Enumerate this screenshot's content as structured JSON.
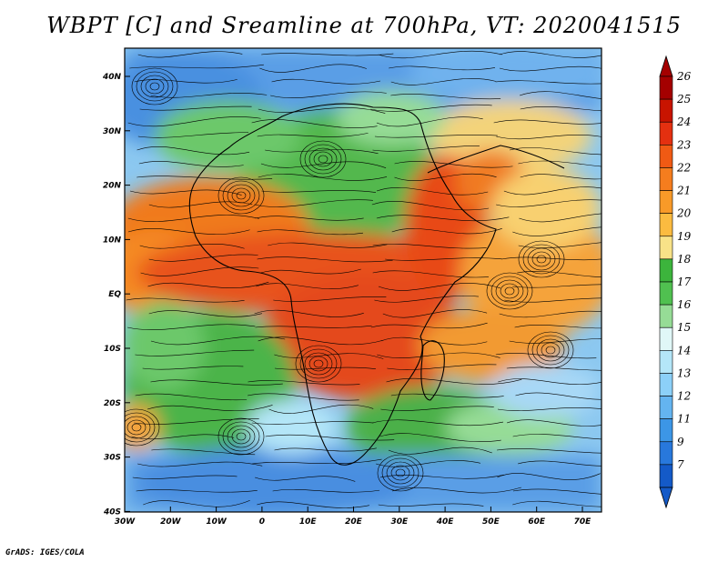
{
  "title": "WBPT [C] and Sreamline at 700hPa, VT: 2020041515",
  "credit": "GrADS: IGES/COLA",
  "lat_labels": [
    "40N",
    "30N",
    "20N",
    "10N",
    "EQ",
    "10S",
    "20S",
    "30S",
    "40S"
  ],
  "lon_labels": [
    "30W",
    "20W",
    "10W",
    "0",
    "10E",
    "20E",
    "30E",
    "40E",
    "50E",
    "60E",
    "70E"
  ],
  "colorbar": {
    "labels": [
      "26",
      "25",
      "24",
      "23",
      "22",
      "21",
      "20",
      "19",
      "18",
      "17",
      "16",
      "15",
      "14",
      "13",
      "12",
      "11",
      "9",
      "7"
    ],
    "colors": [
      "#a40000",
      "#c81400",
      "#e43010",
      "#f05a14",
      "#f57d1e",
      "#f89a28",
      "#fbbb40",
      "#f8e288",
      "#3cb43c",
      "#50c050",
      "#96dc96",
      "#e0f7f7",
      "#b4e6f8",
      "#8cd0f8",
      "#64b4f0",
      "#3c96e6",
      "#2878dc",
      "#145ac8"
    ]
  }
}
